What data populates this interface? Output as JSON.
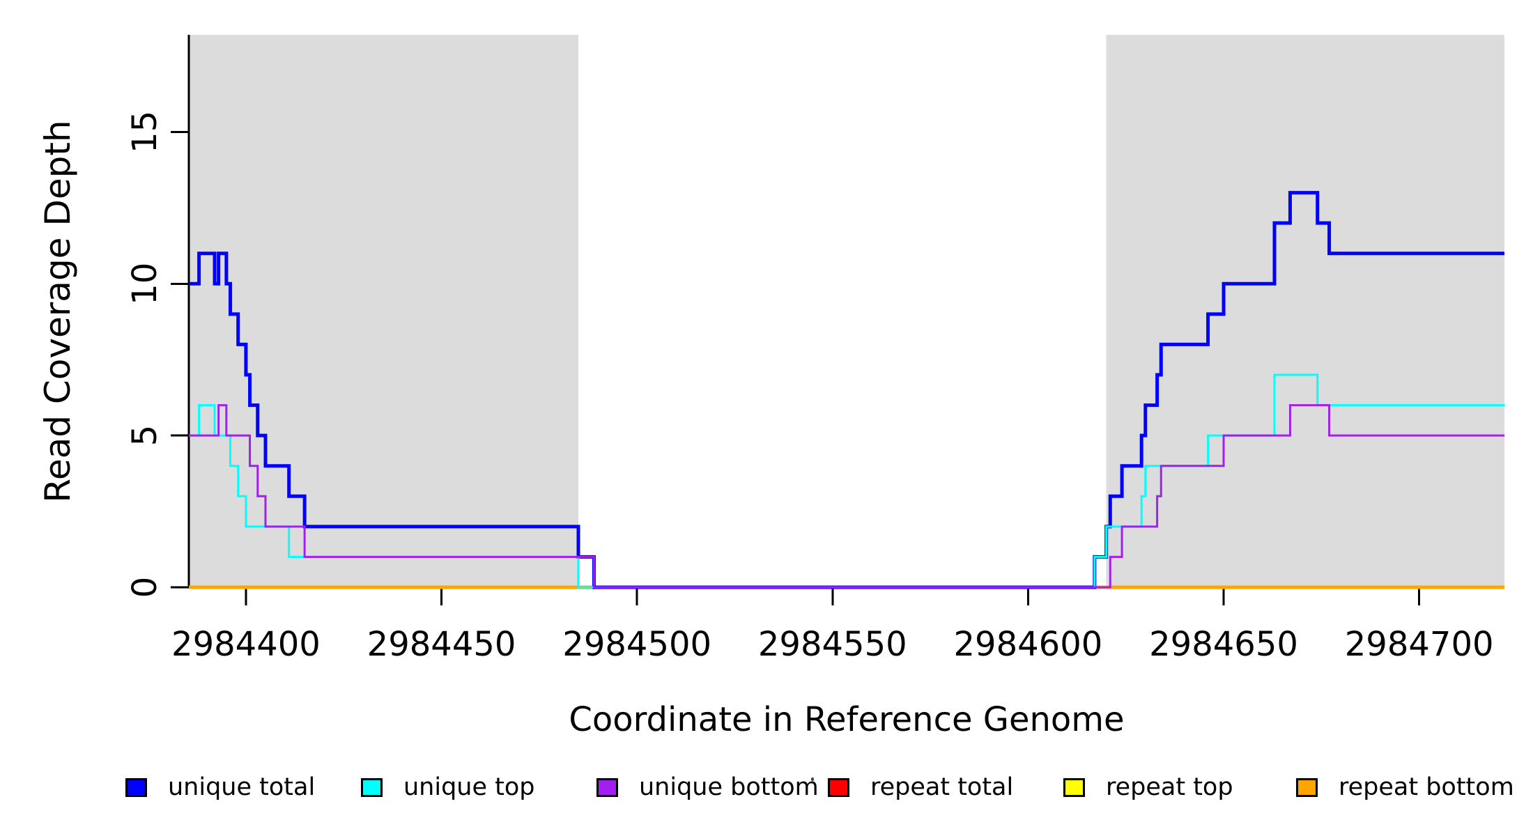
{
  "figure": {
    "xlabel": "Coordinate in Reference Genome",
    "ylabel": "Read Coverage Depth"
  },
  "legend": {
    "entries": [
      {
        "label": "unique total",
        "color": "#0000FF"
      },
      {
        "label": "unique top",
        "color": "#00FFFF"
      },
      {
        "label": "unique bottom",
        "color": "#A020F0"
      },
      {
        "label": "repeat total",
        "color": "#FF0000"
      },
      {
        "label": "repeat top",
        "color": "#FFFF00"
      },
      {
        "label": "repeat bottom",
        "color": "#FFA500"
      }
    ]
  },
  "chart_data": {
    "type": "line",
    "subtype": "step-coverage",
    "title": "",
    "xlabel": "Coordinate in Reference Genome",
    "ylabel": "Read Coverage Depth",
    "xlim": [
      2984385.4,
      2984721.8
    ],
    "ylim": [
      0,
      18.2
    ],
    "x_ticks": [
      2984400,
      2984450,
      2984500,
      2984550,
      2984600,
      2984650,
      2984700
    ],
    "y_ticks": [
      0,
      5,
      10,
      15
    ],
    "grid": false,
    "legend_position": "bottom",
    "shade_color": "#DCDCDC",
    "shaded_regions": [
      {
        "from": 2984385.4,
        "to": 2984485
      },
      {
        "from": 2984620,
        "to": 2984721.8
      }
    ],
    "series": [
      {
        "name": "unique total",
        "color": "#0000FF",
        "line_width": 5,
        "steps": [
          [
            2984385.4,
            10
          ],
          [
            2984388,
            11
          ],
          [
            2984392,
            10
          ],
          [
            2984393,
            11
          ],
          [
            2984395,
            10
          ],
          [
            2984396,
            9
          ],
          [
            2984398,
            8
          ],
          [
            2984400,
            7
          ],
          [
            2984401,
            6
          ],
          [
            2984403,
            5
          ],
          [
            2984405,
            4
          ],
          [
            2984411,
            3
          ],
          [
            2984415,
            2
          ],
          [
            2984485,
            1
          ],
          [
            2984489,
            0
          ],
          [
            2984617,
            1
          ],
          [
            2984620,
            2
          ],
          [
            2984621,
            3
          ],
          [
            2984624,
            4
          ],
          [
            2984629,
            5
          ],
          [
            2984630,
            6
          ],
          [
            2984633,
            7
          ],
          [
            2984634,
            8
          ],
          [
            2984646,
            9
          ],
          [
            2984650,
            10
          ],
          [
            2984663,
            12
          ],
          [
            2984667,
            13
          ],
          [
            2984674,
            12
          ],
          [
            2984677,
            11
          ]
        ]
      },
      {
        "name": "unique top",
        "color": "#00FFFF",
        "line_width": 3,
        "steps": [
          [
            2984385.4,
            5
          ],
          [
            2984388,
            6
          ],
          [
            2984392,
            5
          ],
          [
            2984396,
            4
          ],
          [
            2984398,
            3
          ],
          [
            2984400,
            2
          ],
          [
            2984411,
            1
          ],
          [
            2984485,
            0
          ],
          [
            2984617,
            1
          ],
          [
            2984620,
            2
          ],
          [
            2984629,
            3
          ],
          [
            2984630,
            4
          ],
          [
            2984646,
            5
          ],
          [
            2984663,
            7
          ],
          [
            2984674,
            6
          ]
        ]
      },
      {
        "name": "unique bottom",
        "color": "#A020F0",
        "line_width": 3,
        "steps": [
          [
            2984385.4,
            5
          ],
          [
            2984393,
            6
          ],
          [
            2984395,
            5
          ],
          [
            2984401,
            4
          ],
          [
            2984403,
            3
          ],
          [
            2984405,
            2
          ],
          [
            2984415,
            1
          ],
          [
            2984489,
            0
          ],
          [
            2984621,
            1
          ],
          [
            2984624,
            2
          ],
          [
            2984633,
            3
          ],
          [
            2984634,
            4
          ],
          [
            2984650,
            5
          ],
          [
            2984667,
            6
          ],
          [
            2984677,
            5
          ]
        ]
      },
      {
        "name": "repeat total",
        "color": "#FF0000",
        "line_width": 5,
        "steps": [
          [
            2984385.4,
            0
          ]
        ]
      },
      {
        "name": "repeat top",
        "color": "#FFFF00",
        "line_width": 4,
        "steps": [
          [
            2984385.4,
            0
          ]
        ]
      },
      {
        "name": "repeat bottom",
        "color": "#FFA500",
        "line_width": 5,
        "steps": [
          [
            2984385.4,
            0
          ]
        ]
      }
    ],
    "draw_order": [
      3,
      4,
      5,
      0,
      1,
      2
    ]
  }
}
